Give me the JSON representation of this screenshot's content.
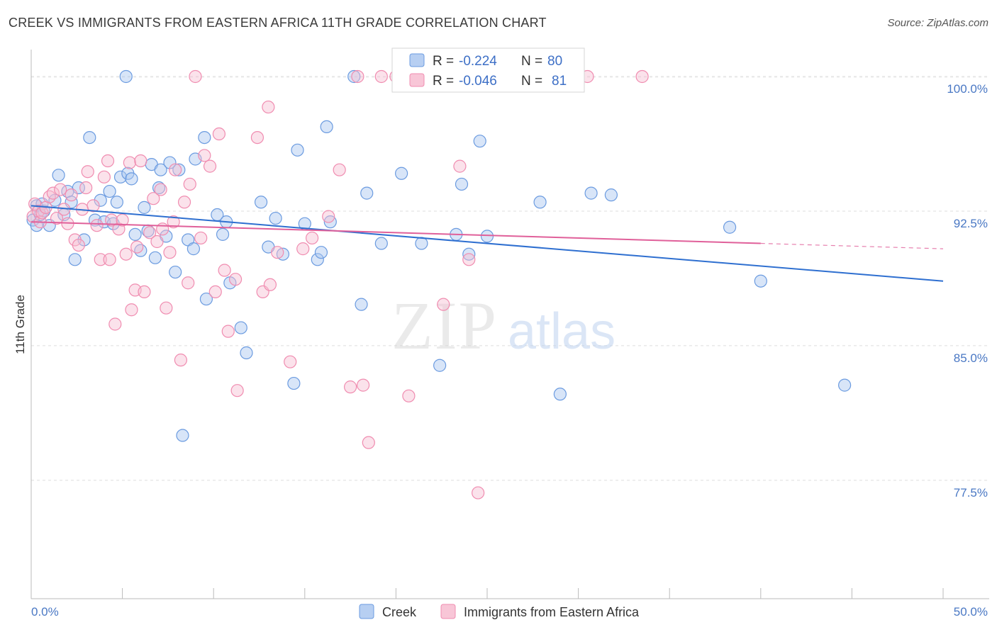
{
  "title": "CREEK VS IMMIGRANTS FROM EASTERN AFRICA 11TH GRADE CORRELATION CHART",
  "source": "Source: ZipAtlas.com",
  "colors": {
    "blue": "#6b9be0",
    "blue_fill": "#a9c6f0",
    "pink": "#f08cb0",
    "pink_fill": "#f7bfd2",
    "blue_line": "#2e6fd0",
    "pink_line": "#e0609a"
  },
  "chart_data": {
    "type": "scatter",
    "ylabel": "11th Grade",
    "xlim": [
      0,
      50
    ],
    "ylim": [
      70.9,
      101.5
    ],
    "x_tick_labels": [
      "0.0%",
      "50.0%"
    ],
    "y_ticks": [
      77.5,
      85.0,
      92.5,
      100.0
    ],
    "y_tick_labels": [
      "77.5%",
      "85.0%",
      "92.5%",
      "100.0%"
    ],
    "grid": true,
    "legend": {
      "placement": "top-center",
      "entries": [
        {
          "r_label": "R = ",
          "r_value": "-0.224",
          "n_label": "N = ",
          "n_value": "80"
        },
        {
          "r_label": "R = ",
          "r_value": "-0.046",
          "n_label": "N = ",
          "n_value": "81"
        }
      ]
    },
    "series": [
      {
        "name": "Creek",
        "trend": {
          "x": [
            0,
            50
          ],
          "y": [
            92.8,
            88.6
          ]
        },
        "points": [
          [
            0.1,
            92.0
          ],
          [
            0.3,
            91.7
          ],
          [
            0.3,
            92.8
          ],
          [
            0.5,
            92.3
          ],
          [
            0.6,
            92.9
          ],
          [
            0.7,
            92.5
          ],
          [
            1.0,
            91.7
          ],
          [
            1.3,
            93.1
          ],
          [
            1.5,
            94.5
          ],
          [
            1.8,
            92.3
          ],
          [
            2.0,
            93.6
          ],
          [
            2.2,
            93.0
          ],
          [
            2.4,
            89.8
          ],
          [
            2.6,
            93.8
          ],
          [
            2.9,
            90.9
          ],
          [
            3.2,
            96.6
          ],
          [
            3.5,
            92.0
          ],
          [
            3.8,
            93.1
          ],
          [
            4.0,
            91.9
          ],
          [
            4.3,
            93.6
          ],
          [
            4.5,
            91.8
          ],
          [
            4.7,
            93.0
          ],
          [
            4.9,
            94.4
          ],
          [
            5.2,
            100.0
          ],
          [
            5.3,
            94.6
          ],
          [
            5.5,
            94.3
          ],
          [
            5.7,
            91.2
          ],
          [
            6.0,
            90.3
          ],
          [
            6.2,
            92.7
          ],
          [
            6.4,
            91.4
          ],
          [
            6.6,
            95.1
          ],
          [
            6.8,
            89.9
          ],
          [
            7.0,
            93.8
          ],
          [
            7.1,
            94.8
          ],
          [
            7.4,
            91.1
          ],
          [
            7.6,
            95.2
          ],
          [
            7.9,
            89.1
          ],
          [
            8.1,
            94.8
          ],
          [
            8.3,
            80.0
          ],
          [
            8.6,
            90.9
          ],
          [
            8.9,
            90.4
          ],
          [
            9.0,
            95.4
          ],
          [
            9.5,
            96.6
          ],
          [
            9.6,
            87.6
          ],
          [
            10.2,
            92.3
          ],
          [
            10.5,
            91.2
          ],
          [
            10.7,
            91.9
          ],
          [
            10.9,
            88.5
          ],
          [
            11.5,
            86.0
          ],
          [
            11.8,
            84.6
          ],
          [
            12.6,
            93.0
          ],
          [
            13.0,
            90.5
          ],
          [
            13.4,
            92.1
          ],
          [
            13.8,
            90.1
          ],
          [
            14.4,
            82.9
          ],
          [
            14.6,
            95.9
          ],
          [
            15.0,
            91.8
          ],
          [
            15.7,
            89.8
          ],
          [
            15.9,
            90.2
          ],
          [
            16.2,
            97.2
          ],
          [
            16.4,
            91.9
          ],
          [
            17.7,
            100.0
          ],
          [
            18.1,
            87.3
          ],
          [
            18.4,
            93.5
          ],
          [
            19.2,
            90.7
          ],
          [
            20.3,
            94.6
          ],
          [
            21.4,
            90.7
          ],
          [
            22.4,
            83.9
          ],
          [
            23.3,
            91.2
          ],
          [
            23.6,
            94.0
          ],
          [
            24.0,
            90.1
          ],
          [
            24.6,
            96.4
          ],
          [
            25.0,
            91.1
          ],
          [
            27.9,
            93.0
          ],
          [
            29.0,
            82.3
          ],
          [
            30.7,
            93.5
          ],
          [
            31.8,
            93.4
          ],
          [
            38.3,
            91.6
          ],
          [
            40.0,
            88.6
          ],
          [
            44.6,
            82.8
          ]
        ]
      },
      {
        "name": "Immigrants from Eastern Africa",
        "trend": {
          "x": [
            0,
            40
          ],
          "y": [
            91.9,
            90.7
          ]
        },
        "trend_dashed": {
          "x": [
            40,
            50
          ],
          "y": [
            90.7,
            90.4
          ]
        },
        "points": [
          [
            0.1,
            92.2
          ],
          [
            0.2,
            92.9
          ],
          [
            0.4,
            92.5
          ],
          [
            0.5,
            91.9
          ],
          [
            0.6,
            92.4
          ],
          [
            0.8,
            92.7
          ],
          [
            1.0,
            93.3
          ],
          [
            1.2,
            93.5
          ],
          [
            1.4,
            92.1
          ],
          [
            1.6,
            93.7
          ],
          [
            1.8,
            92.6
          ],
          [
            2.0,
            91.8
          ],
          [
            2.2,
            93.4
          ],
          [
            2.4,
            90.9
          ],
          [
            2.6,
            90.6
          ],
          [
            2.8,
            92.6
          ],
          [
            3.0,
            93.8
          ],
          [
            3.1,
            94.7
          ],
          [
            3.4,
            92.8
          ],
          [
            3.6,
            91.7
          ],
          [
            3.8,
            89.8
          ],
          [
            4.0,
            94.4
          ],
          [
            4.2,
            95.3
          ],
          [
            4.3,
            89.8
          ],
          [
            4.4,
            92.0
          ],
          [
            4.6,
            86.2
          ],
          [
            4.8,
            91.5
          ],
          [
            5.0,
            92.0
          ],
          [
            5.2,
            90.1
          ],
          [
            5.4,
            95.2
          ],
          [
            5.5,
            87.0
          ],
          [
            5.7,
            88.1
          ],
          [
            5.8,
            90.5
          ],
          [
            6.0,
            95.3
          ],
          [
            6.2,
            88.0
          ],
          [
            6.5,
            91.3
          ],
          [
            6.7,
            93.2
          ],
          [
            6.9,
            90.8
          ],
          [
            7.1,
            93.7
          ],
          [
            7.2,
            91.5
          ],
          [
            7.4,
            87.1
          ],
          [
            7.6,
            90.2
          ],
          [
            7.8,
            91.9
          ],
          [
            7.9,
            94.8
          ],
          [
            8.2,
            84.2
          ],
          [
            8.4,
            93.0
          ],
          [
            8.6,
            88.5
          ],
          [
            8.7,
            94.0
          ],
          [
            9.0,
            100.0
          ],
          [
            9.3,
            91.0
          ],
          [
            9.5,
            95.6
          ],
          [
            9.8,
            95.0
          ],
          [
            10.1,
            88.0
          ],
          [
            10.3,
            96.8
          ],
          [
            10.6,
            89.2
          ],
          [
            10.8,
            85.8
          ],
          [
            11.2,
            88.7
          ],
          [
            11.3,
            82.5
          ],
          [
            12.4,
            96.6
          ],
          [
            12.7,
            88.0
          ],
          [
            13.1,
            88.4
          ],
          [
            13.0,
            98.3
          ],
          [
            13.5,
            90.2
          ],
          [
            14.2,
            84.1
          ],
          [
            14.9,
            90.4
          ],
          [
            15.4,
            91.0
          ],
          [
            16.3,
            92.2
          ],
          [
            16.9,
            94.8
          ],
          [
            17.5,
            82.7
          ],
          [
            17.9,
            100.0
          ],
          [
            18.2,
            82.8
          ],
          [
            18.5,
            79.6
          ],
          [
            19.2,
            100.0
          ],
          [
            20.0,
            100.0
          ],
          [
            20.7,
            82.2
          ],
          [
            22.6,
            87.3
          ],
          [
            23.5,
            95.0
          ],
          [
            24.0,
            89.8
          ],
          [
            24.5,
            76.8
          ],
          [
            30.5,
            100.0
          ],
          [
            33.5,
            100.0
          ]
        ]
      }
    ]
  }
}
